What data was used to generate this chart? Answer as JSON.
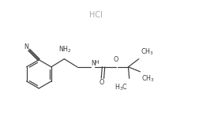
{
  "background_color": "#ffffff",
  "line_color": "#3a3a3a",
  "hcl_color": "#aaaaaa",
  "fig_width": 2.53,
  "fig_height": 1.66,
  "dpi": 100,
  "hcl_text": "HCl",
  "bond_lw": 0.85,
  "label_fontsize": 5.8,
  "hcl_fontsize": 7.0,
  "xlim": [
    0,
    10
  ],
  "ylim": [
    0,
    6.6
  ]
}
